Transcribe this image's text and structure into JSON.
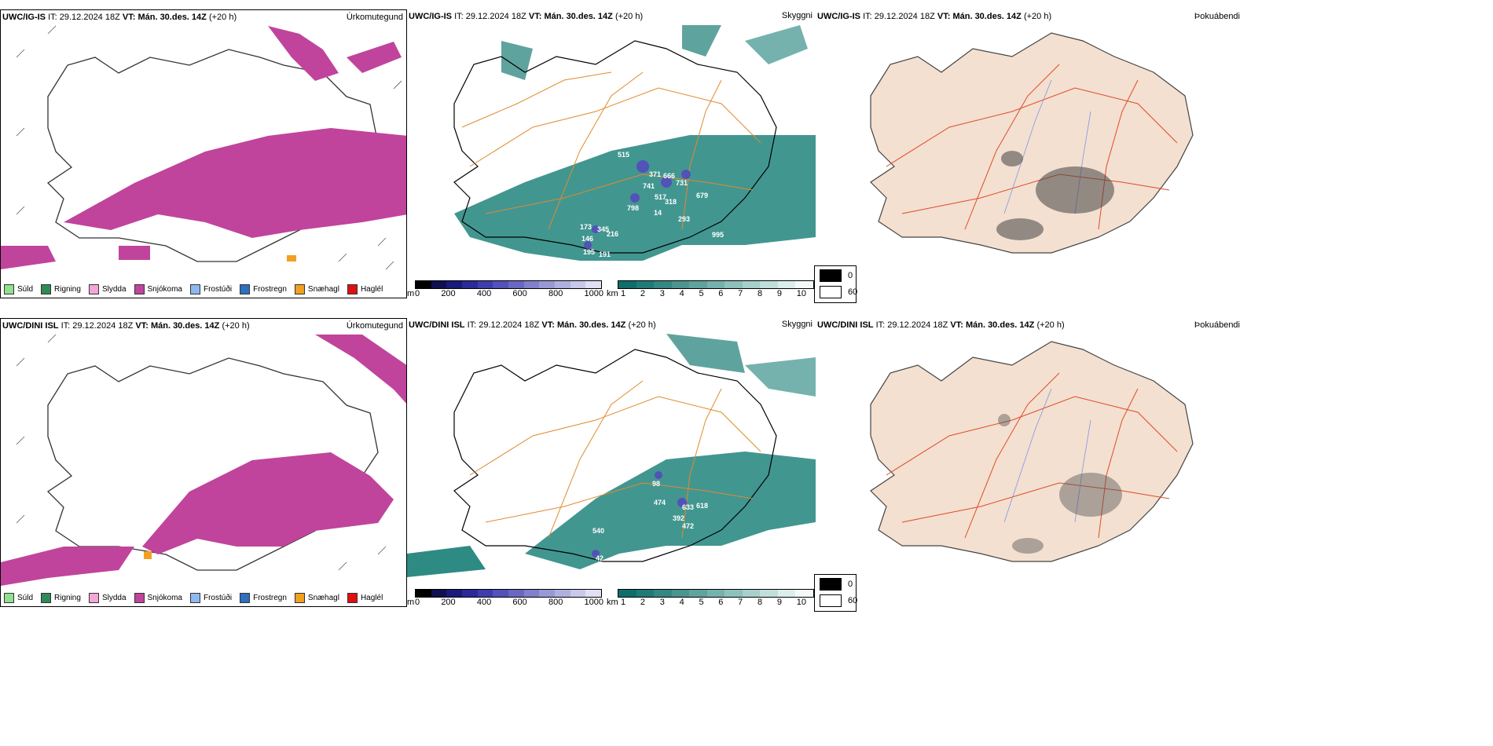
{
  "rows": [
    {
      "model_label": "UWC/IG-IS",
      "init_label": "IT:",
      "init_value": "29.12.2024 18Z",
      "valid_label": "VT:",
      "valid_value": "Mán. 30.des. 14Z",
      "lead": "(+20 h)"
    },
    {
      "model_label": "UWC/DINI ISL",
      "init_label": "IT:",
      "init_value": "29.12.2024 18Z",
      "valid_label": "VT:",
      "valid_value": "Mán. 30.des. 14Z",
      "lead": "(+20 h)"
    }
  ],
  "panel_titles": {
    "precip": "Úrkomutegund",
    "visibility": "Skyggni",
    "cloud": "Þokuábendi"
  },
  "precip_legend": [
    {
      "label": "Súld",
      "color": "#8fe08f"
    },
    {
      "label": "Rigning",
      "color": "#2e8b57"
    },
    {
      "label": "Slydda",
      "color": "#f4a6d7"
    },
    {
      "label": "Snjókoma",
      "color": "#c0449c"
    },
    {
      "label": "Frostúði",
      "color": "#8fb8ef"
    },
    {
      "label": "Frostregn",
      "color": "#2f6fbf"
    },
    {
      "label": "Snæhagl",
      "color": "#f2a020"
    },
    {
      "label": "Haglél",
      "color": "#e01010"
    }
  ],
  "height_bar": {
    "unit": "m",
    "ticks": [
      "0",
      "200",
      "400",
      "600",
      "800",
      "1000"
    ],
    "colors": [
      "#000000",
      "#101050",
      "#1a1a7a",
      "#2a2a99",
      "#3d3dac",
      "#5252b8",
      "#6868c2",
      "#8080cc",
      "#9999d6",
      "#b0b0e0",
      "#c8c8ea",
      "#e0e0f4"
    ]
  },
  "vis_bar": {
    "unit": "km",
    "ticks": [
      "1",
      "2",
      "3",
      "4",
      "5",
      "6",
      "7",
      "8",
      "9",
      "10"
    ],
    "colors": [
      "#0f6e6a",
      "#217a76",
      "#358783",
      "#4a9590",
      "#5fa39e",
      "#76b2ad",
      "#8dc1bc",
      "#a6d0cb",
      "#c0dfdb",
      "#dbeeeb",
      "#f3faf9"
    ]
  },
  "cloud_key": [
    {
      "label": "0",
      "color": "#000000"
    },
    {
      "label": "60",
      "color": "#ffffff"
    }
  ],
  "elev_labels_top": [
    "515",
    "371",
    "666",
    "741",
    "731",
    "517",
    "318",
    "679",
    "798",
    "14",
    "293",
    "173",
    "345",
    "216",
    "146",
    "995",
    "195",
    "191"
  ],
  "elev_labels_bottom": [
    "98",
    "474",
    "633",
    "618",
    "392",
    "472",
    "540",
    "42"
  ],
  "colors": {
    "snow": "#c0449c",
    "ice_pellet": "#f2a020",
    "vis_teal": "#2e8b84",
    "land_fog": "#f3e0d0",
    "road_orange": "#e08a2e",
    "road_red": "#e04a2a",
    "river_blue": "#7f96e8"
  }
}
